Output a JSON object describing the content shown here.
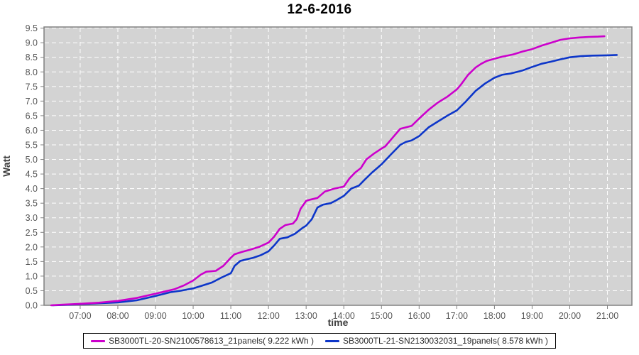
{
  "chart_data": {
    "type": "line",
    "title": "12-6-2016",
    "xlabel": "time",
    "ylabel": "Watt",
    "grid": true,
    "legend_position": "bottom",
    "plot_bg": "#d3d3d3",
    "grid_color": "#ffffff",
    "axis_color": "#808080",
    "tick_label_color": "#555555",
    "xlim_hours": [
      6.04,
      21.65
    ],
    "ylim": [
      0,
      9.54
    ],
    "x_tick_labels": [
      "07:00",
      "08:00",
      "09:00",
      "10:00",
      "11:00",
      "12:00",
      "13:00",
      "14:00",
      "15:00",
      "16:00",
      "17:00",
      "18:00",
      "19:00",
      "20:00",
      "21:00"
    ],
    "y_tick_labels": [
      "0.0",
      "0.5",
      "1.0",
      "1.5",
      "2.0",
      "2.5",
      "3.0",
      "3.5",
      "4.0",
      "4.5",
      "5.0",
      "5.5",
      "6.0",
      "6.5",
      "7.0",
      "7.5",
      "8.0",
      "8.5",
      "9.0",
      "9.5"
    ],
    "series": [
      {
        "name": "SB3000TL-20-SN2100578613_21panels( 9.222 kWh )",
        "color": "#cc00cc",
        "total_kwh": 9.222,
        "x": [
          6.23,
          6.5,
          7.0,
          7.5,
          8.0,
          8.5,
          9.0,
          9.33,
          9.5,
          9.75,
          10.0,
          10.2,
          10.35,
          10.6,
          10.8,
          11.0,
          11.1,
          11.3,
          11.5,
          11.75,
          12.0,
          12.15,
          12.3,
          12.45,
          12.65,
          12.75,
          12.85,
          13.0,
          13.1,
          13.3,
          13.5,
          13.75,
          14.0,
          14.15,
          14.3,
          14.45,
          14.6,
          14.8,
          15.0,
          15.1,
          15.3,
          15.5,
          15.65,
          15.8,
          16.0,
          16.25,
          16.5,
          16.75,
          17.0,
          17.1,
          17.3,
          17.5,
          17.65,
          17.8,
          18.0,
          18.2,
          18.5,
          18.75,
          19.0,
          19.25,
          19.5,
          19.75,
          20.0,
          20.25,
          20.5,
          20.75,
          20.92
        ],
        "y": [
          0.0,
          0.02,
          0.05,
          0.09,
          0.15,
          0.25,
          0.4,
          0.5,
          0.55,
          0.68,
          0.85,
          1.05,
          1.15,
          1.18,
          1.35,
          1.63,
          1.75,
          1.83,
          1.9,
          2.0,
          2.15,
          2.35,
          2.62,
          2.75,
          2.8,
          2.95,
          3.3,
          3.58,
          3.62,
          3.68,
          3.9,
          4.0,
          4.07,
          4.35,
          4.55,
          4.7,
          5.0,
          5.2,
          5.37,
          5.45,
          5.75,
          6.05,
          6.1,
          6.15,
          6.4,
          6.7,
          6.95,
          7.15,
          7.4,
          7.55,
          7.9,
          8.15,
          8.28,
          8.38,
          8.45,
          8.52,
          8.6,
          8.7,
          8.78,
          8.9,
          9.0,
          9.1,
          9.15,
          9.18,
          9.2,
          9.21,
          9.22
        ]
      },
      {
        "name": "SB3000TL-21-SN2130032031_19panels( 8.578 kWh )",
        "color": "#0d36c9",
        "total_kwh": 8.578,
        "x": [
          6.27,
          6.5,
          7.0,
          7.5,
          8.0,
          8.5,
          9.0,
          9.4,
          9.67,
          10.0,
          10.25,
          10.5,
          10.75,
          11.0,
          11.1,
          11.25,
          11.4,
          11.6,
          11.8,
          12.0,
          12.15,
          12.3,
          12.5,
          12.7,
          12.9,
          13.0,
          13.15,
          13.3,
          13.45,
          13.65,
          13.8,
          14.0,
          14.2,
          14.4,
          14.55,
          14.75,
          15.0,
          15.25,
          15.5,
          15.65,
          15.8,
          16.0,
          16.25,
          16.5,
          16.75,
          17.0,
          17.25,
          17.5,
          17.75,
          18.0,
          18.2,
          18.45,
          18.75,
          19.0,
          19.25,
          19.5,
          19.75,
          20.0,
          20.3,
          20.6,
          21.0,
          21.25
        ],
        "y": [
          0.0,
          0.01,
          0.04,
          0.07,
          0.1,
          0.17,
          0.32,
          0.45,
          0.5,
          0.58,
          0.68,
          0.78,
          0.95,
          1.1,
          1.35,
          1.52,
          1.57,
          1.63,
          1.72,
          1.85,
          2.05,
          2.28,
          2.33,
          2.45,
          2.65,
          2.73,
          2.95,
          3.35,
          3.45,
          3.5,
          3.6,
          3.75,
          4.0,
          4.1,
          4.3,
          4.55,
          4.83,
          5.17,
          5.5,
          5.6,
          5.65,
          5.8,
          6.1,
          6.3,
          6.5,
          6.68,
          7.0,
          7.35,
          7.6,
          7.8,
          7.9,
          7.95,
          8.05,
          8.17,
          8.28,
          8.35,
          8.43,
          8.5,
          8.54,
          8.56,
          8.57,
          8.58
        ]
      }
    ]
  }
}
